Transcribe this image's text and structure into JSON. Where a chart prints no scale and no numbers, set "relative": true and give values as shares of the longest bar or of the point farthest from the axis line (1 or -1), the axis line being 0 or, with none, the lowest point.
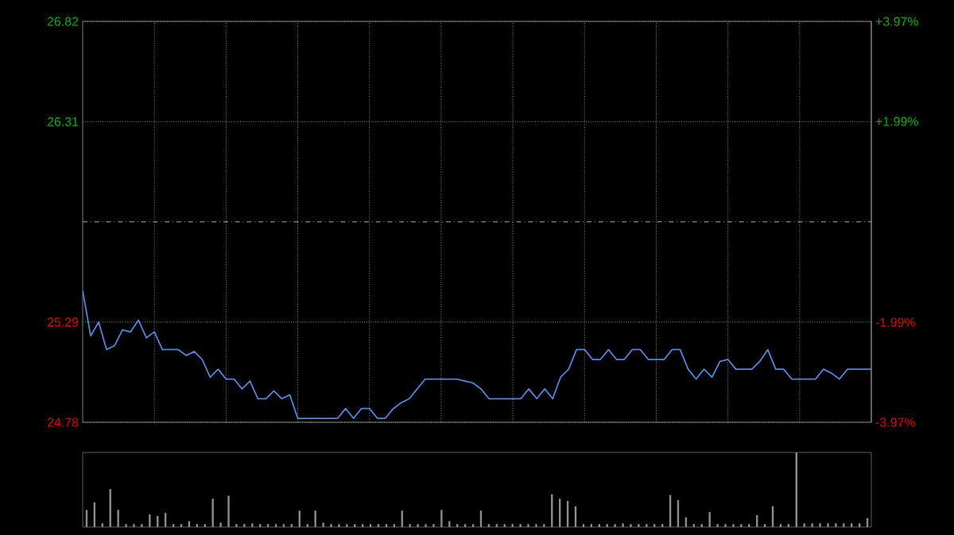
{
  "chart_data": [
    {
      "type": "line",
      "categories": [
        null,
        null,
        null,
        null,
        null,
        null,
        null,
        null,
        null,
        null,
        null,
        null,
        null,
        null,
        null,
        null,
        null,
        null,
        null,
        null,
        null,
        null,
        null,
        null,
        null,
        null,
        null,
        null,
        null,
        null,
        null,
        null,
        null,
        null,
        null,
        null,
        null,
        null,
        null,
        null,
        null,
        null,
        null,
        null,
        null,
        null,
        null,
        null,
        null,
        null,
        null,
        null,
        null,
        null,
        null,
        null,
        null,
        null,
        null,
        null,
        null,
        null,
        null,
        null,
        null,
        null,
        null,
        null,
        null,
        null,
        null,
        null,
        null,
        null,
        null,
        null,
        null,
        null,
        null,
        null,
        null,
        null,
        null,
        null,
        null,
        null,
        null,
        null,
        null,
        null,
        null,
        null,
        null,
        null,
        null,
        null,
        null,
        null,
        null,
        null
      ],
      "values": [
        25.45,
        25.22,
        25.29,
        25.15,
        25.17,
        25.25,
        25.24,
        25.3,
        25.21,
        25.24,
        25.15,
        25.15,
        25.15,
        25.12,
        25.14,
        25.1,
        25.01,
        25.05,
        25.0,
        25.0,
        24.95,
        24.99,
        24.9,
        24.9,
        24.94,
        24.9,
        24.92,
        24.8,
        24.8,
        24.8,
        24.8,
        24.8,
        24.8,
        24.85,
        24.8,
        24.85,
        24.85,
        24.8,
        24.8,
        24.85,
        24.88,
        24.9,
        24.95,
        25.0,
        25.0,
        25.0,
        25.0,
        25.0,
        24.99,
        24.98,
        24.95,
        24.9,
        24.9,
        24.9,
        24.9,
        24.9,
        24.95,
        24.9,
        24.95,
        24.9,
        25.01,
        25.05,
        25.15,
        25.15,
        25.1,
        25.1,
        25.15,
        25.1,
        25.1,
        25.15,
        25.15,
        25.1,
        25.1,
        25.1,
        25.15,
        25.15,
        25.05,
        25.0,
        25.05,
        25.01,
        25.09,
        25.1,
        25.05,
        25.05,
        25.05,
        25.09,
        25.15,
        25.05,
        25.05,
        25.0,
        25.0,
        25.0,
        25.0,
        25.05,
        25.03,
        25.0,
        25.05,
        25.05,
        25.05,
        25.05
      ],
      "color": "#4f86d9",
      "ylim": [
        24.78,
        26.82
      ],
      "yticks": [
        26.82,
        26.31,
        25.29,
        24.78
      ],
      "y2lim": [
        -3.97,
        3.97
      ],
      "y2ticks": [
        {
          "value": 3.97,
          "label": "+3.97%"
        },
        {
          "value": 1.99,
          "label": "+1.99%"
        },
        {
          "value": -1.99,
          "label": "-1.99%"
        },
        {
          "value": -3.97,
          "label": "-3.97%"
        }
      ],
      "ref_lines": [
        {
          "axis": "y",
          "value": 25.8,
          "color": "#9a9a9a",
          "line_style": "dashed"
        }
      ],
      "grid": true
    },
    {
      "type": "bar",
      "relative": true,
      "categories": [
        null,
        null,
        null,
        null,
        null,
        null,
        null,
        null,
        null,
        null,
        null,
        null,
        null,
        null,
        null,
        null,
        null,
        null,
        null,
        null,
        null,
        null,
        null,
        null,
        null,
        null,
        null,
        null,
        null,
        null,
        null,
        null,
        null,
        null,
        null,
        null,
        null,
        null,
        null,
        null,
        null,
        null,
        null,
        null,
        null,
        null,
        null,
        null,
        null,
        null,
        null,
        null,
        null,
        null,
        null,
        null,
        null,
        null,
        null,
        null,
        null,
        null,
        null,
        null,
        null,
        null,
        null,
        null,
        null,
        null,
        null,
        null,
        null,
        null,
        null,
        null,
        null,
        null,
        null,
        null,
        null,
        null,
        null,
        null,
        null,
        null,
        null,
        null,
        null,
        null,
        null,
        null,
        null,
        null,
        null,
        null,
        null,
        null,
        null,
        null
      ],
      "values": [
        0.23,
        0.33,
        0.05,
        0.51,
        0.23,
        0.04,
        0.04,
        0.04,
        0.17,
        0.15,
        0.19,
        0.04,
        0.04,
        0.08,
        0.04,
        0.04,
        0.38,
        0.06,
        0.42,
        0.04,
        0.04,
        0.05,
        0.04,
        0.04,
        0.04,
        0.04,
        0.04,
        0.22,
        0.04,
        0.22,
        0.06,
        0.04,
        0.04,
        0.04,
        0.04,
        0.04,
        0.04,
        0.04,
        0.04,
        0.04,
        0.22,
        0.04,
        0.04,
        0.04,
        0.04,
        0.23,
        0.08,
        0.04,
        0.04,
        0.04,
        0.22,
        0.04,
        0.04,
        0.04,
        0.04,
        0.04,
        0.04,
        0.04,
        0.04,
        0.44,
        0.38,
        0.35,
        0.28,
        0.04,
        0.04,
        0.04,
        0.04,
        0.04,
        0.05,
        0.04,
        0.04,
        0.04,
        0.04,
        0.04,
        0.43,
        0.36,
        0.13,
        0.04,
        0.04,
        0.2,
        0.04,
        0.04,
        0.04,
        0.04,
        0.04,
        0.16,
        0.04,
        0.28,
        0.04,
        0.04,
        1,
        0.05,
        0.05,
        0.05,
        0.05,
        0.05,
        0.05,
        0.05,
        0.05,
        0.12
      ],
      "color": "#8c8c8c"
    }
  ]
}
